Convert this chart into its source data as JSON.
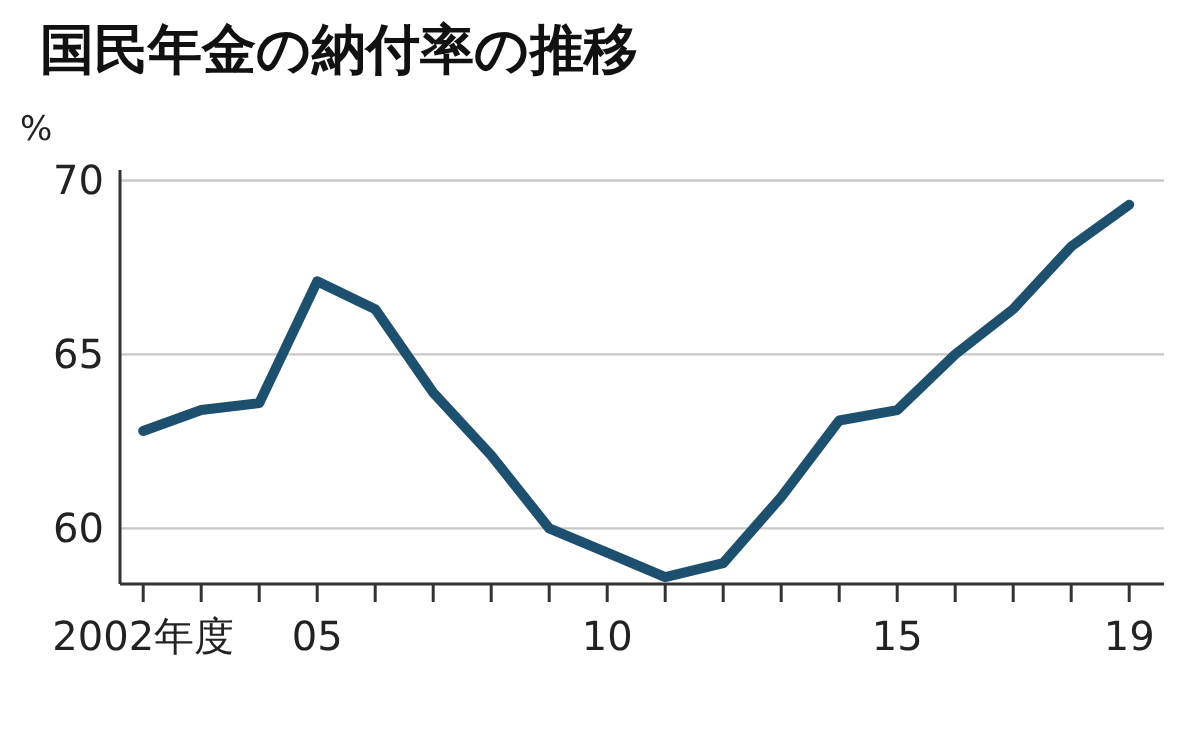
{
  "chart_data": {
    "type": "line",
    "title": "国民年金の納付率の推移",
    "ylabel": "%",
    "x": [
      2002,
      2003,
      2004,
      2005,
      2006,
      2007,
      2008,
      2009,
      2010,
      2011,
      2012,
      2013,
      2014,
      2015,
      2016,
      2017,
      2018,
      2019
    ],
    "series": [
      {
        "color": "#1d4f6e",
        "values": [
          62.8,
          63.4,
          63.6,
          67.1,
          66.3,
          63.9,
          62.1,
          60.0,
          59.3,
          58.6,
          59.0,
          60.9,
          63.1,
          63.4,
          65.0,
          66.3,
          68.1,
          69.3
        ]
      }
    ],
    "xlim": [
      2001.6,
      2019.6
    ],
    "ylim": [
      58.4,
      70.3
    ],
    "xticks": [
      {
        "value": 2002,
        "label": "2002年度"
      },
      {
        "value": 2003,
        "label": null
      },
      {
        "value": 2004,
        "label": null
      },
      {
        "value": 2005,
        "label": "05"
      },
      {
        "value": 2006,
        "label": null
      },
      {
        "value": 2007,
        "label": null
      },
      {
        "value": 2008,
        "label": null
      },
      {
        "value": 2009,
        "label": null
      },
      {
        "value": 2010,
        "label": "10"
      },
      {
        "value": 2011,
        "label": null
      },
      {
        "value": 2012,
        "label": null
      },
      {
        "value": 2013,
        "label": null
      },
      {
        "value": 2014,
        "label": null
      },
      {
        "value": 2015,
        "label": "15"
      },
      {
        "value": 2016,
        "label": null
      },
      {
        "value": 2017,
        "label": null
      },
      {
        "value": 2018,
        "label": null
      },
      {
        "value": 2019,
        "label": "19"
      }
    ],
    "yticks": [
      60,
      65,
      70
    ],
    "grid": "y",
    "marker": "none",
    "line_style": "solid"
  }
}
